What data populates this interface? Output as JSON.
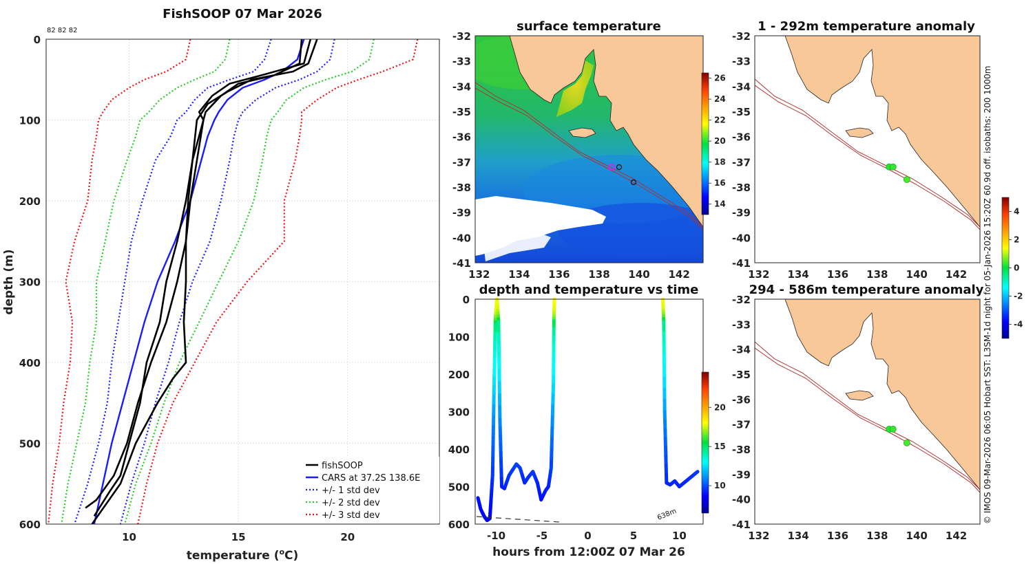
{
  "profile": {
    "title": "FishSOOP 07 Mar 2026",
    "counts_label": "82 82 82",
    "xlabel": "temperature (",
    "xlabel_unit_sup": "o",
    "xlabel_unit": "C)",
    "ylabel": "depth (m)",
    "xticks": [
      10,
      15,
      20
    ],
    "yticks": [
      0,
      100,
      200,
      300,
      400,
      500,
      600
    ],
    "xlim": [
      6.2,
      24.2
    ],
    "ylim": [
      0,
      600
    ],
    "colors": {
      "fishsoop": "#000000",
      "cars": "#1a1aff",
      "sd1": "#1a1aff",
      "sd2": "#22cc22",
      "sd3": "#ee1111"
    },
    "legend": [
      "fishSOOP",
      "CARS at 37.2S 138.6E",
      "+/- 1 std dev",
      "+/- 2 std dev",
      "+/- 3 std dev"
    ]
  },
  "chart_data": [
    {
      "type": "line",
      "title": "FishSOOP 07 Mar 2026",
      "xlabel": "temperature (oC)",
      "ylabel": "depth (m)",
      "xlim": [
        6.2,
        24.2
      ],
      "ylim": [
        600,
        0
      ],
      "depth_axis": [
        0,
        25,
        40,
        50,
        60,
        75,
        90,
        100,
        120,
        150,
        200,
        250,
        300,
        350,
        400,
        450,
        500,
        550,
        600
      ],
      "series": [
        {
          "name": "CARS at 37.2S 138.6E",
          "temperature": [
            18.0,
            17.7,
            17.0,
            16.2,
            15.2,
            14.5,
            14.1,
            13.9,
            13.6,
            13.3,
            12.8,
            12.1,
            11.3,
            10.7,
            10.2,
            9.7,
            9.2,
            8.8,
            8.4
          ]
        },
        {
          "name": "+1 std dev",
          "temperature": [
            19.4,
            19.2,
            18.6,
            17.8,
            16.7,
            15.8,
            15.2,
            15.0,
            14.8,
            14.6,
            14.2,
            13.7,
            12.9,
            12.3,
            11.8,
            11.2,
            10.7,
            10.1,
            9.6
          ]
        },
        {
          "name": "-1 std dev",
          "temperature": [
            16.5,
            16.2,
            15.7,
            14.6,
            13.6,
            13.0,
            12.6,
            12.2,
            11.9,
            11.2,
            10.6,
            10.1,
            9.8,
            9.5,
            9.2,
            9.0,
            8.6,
            8.1,
            7.5
          ]
        },
        {
          "name": "+2 std dev",
          "temperature": [
            21.2,
            21.0,
            20.2,
            19.0,
            18.0,
            17.2,
            16.8,
            16.5,
            16.3,
            16.1,
            15.7,
            15.0,
            14.1,
            13.2,
            12.3,
            11.6,
            11.0,
            10.3,
            9.8
          ]
        },
        {
          "name": "-2 std dev",
          "temperature": [
            14.6,
            14.4,
            13.9,
            13.0,
            12.2,
            11.4,
            10.9,
            10.5,
            10.3,
            9.9,
            9.3,
            8.9,
            8.5,
            8.5,
            8.2,
            8.0,
            7.6,
            7.2,
            6.9
          ]
        },
        {
          "name": "+3 std dev",
          "temperature": [
            23.2,
            23.0,
            21.6,
            20.5,
            19.5,
            18.6,
            17.9,
            17.9,
            17.8,
            17.6,
            17.1,
            17.1,
            15.4,
            14.0,
            13.0,
            12.0,
            11.3,
            10.8,
            10.4
          ]
        },
        {
          "name": "-3 std dev",
          "temperature": [
            12.8,
            12.6,
            11.7,
            10.7,
            10.0,
            9.2,
            8.8,
            8.6,
            8.5,
            8.3,
            8.1,
            7.5,
            7.1,
            7.4,
            7.3,
            7.0,
            6.8,
            6.5,
            6.3
          ]
        }
      ],
      "profiles": [
        {
          "name": "fishSOOP 1",
          "depth": [
            0,
            30,
            45,
            55,
            70,
            90,
            100,
            150,
            200,
            250,
            300,
            350,
            400,
            450,
            500,
            540,
            570,
            580
          ],
          "temperature": [
            17.9,
            17.8,
            16.6,
            15.0,
            14.2,
            13.5,
            13.4,
            13.1,
            12.8,
            12.6,
            12.2,
            11.7,
            11.0,
            10.4,
            9.9,
            9.3,
            8.5,
            8.0
          ]
        },
        {
          "name": "fishSOOP 2",
          "depth": [
            0,
            30,
            45,
            55,
            70,
            90,
            100,
            150,
            200,
            250,
            300,
            350,
            400,
            450,
            500,
            540,
            560,
            590
          ],
          "temperature": [
            18.3,
            18.0,
            16.0,
            14.6,
            13.8,
            13.2,
            13.4,
            12.9,
            12.6,
            12.2,
            11.7,
            11.4,
            10.8,
            10.5,
            10.0,
            9.6,
            9.1,
            8.4
          ]
        },
        {
          "name": "fishSOOP 3",
          "depth": [
            0,
            30,
            40,
            50,
            65,
            80,
            100,
            150,
            200,
            250,
            300,
            350,
            400,
            420,
            450,
            500,
            550,
            600
          ],
          "temperature": [
            18.6,
            18.2,
            17.5,
            15.6,
            14.5,
            13.6,
            13.1,
            12.9,
            12.7,
            12.6,
            12.6,
            12.5,
            12.6,
            12.0,
            11.3,
            10.3,
            9.6,
            8.3
          ]
        }
      ]
    },
    {
      "type": "line",
      "title": "depth and temperature vs time",
      "xlabel": "hours from 12:00Z 07 Mar 26",
      "xlim": [
        -12.3,
        12.6
      ],
      "ylim": [
        600,
        0
      ],
      "xticks": [
        -10,
        -5,
        0,
        5,
        10
      ],
      "yticks": [
        0,
        100,
        200,
        300,
        400,
        500,
        600
      ],
      "colorbar": {
        "ticks": [
          10,
          15,
          20
        ],
        "range": [
          6.5,
          24.5
        ]
      },
      "bottom_depth_label": "638m",
      "segments": [
        {
          "hours": [
            -12.0,
            -11.7,
            -11.3,
            -11.0,
            -10.7,
            -10.4,
            -10.25,
            -10.1,
            -9.95
          ],
          "depth": [
            530,
            560,
            580,
            590,
            585,
            470,
            250,
            60,
            0
          ]
        },
        {
          "hours": [
            -9.9,
            -9.75,
            -9.6,
            -9.4,
            -9.1,
            -8.6,
            -8.2,
            -7.8,
            -7.4,
            -6.9,
            -6.5,
            -6.0,
            -5.5,
            -5.1,
            -4.6,
            -4.3,
            -4.0,
            -3.75,
            -3.7,
            -3.65
          ],
          "depth": [
            0,
            60,
            320,
            500,
            505,
            470,
            455,
            440,
            450,
            490,
            475,
            460,
            490,
            535,
            510,
            500,
            450,
            220,
            50,
            0
          ]
        },
        {
          "hours": [
            8.2,
            8.3,
            8.4,
            8.6,
            9.0,
            9.5,
            10.0,
            10.5,
            11.0,
            11.5,
            12.0
          ],
          "depth": [
            0,
            60,
            300,
            490,
            495,
            485,
            500,
            490,
            480,
            470,
            460
          ]
        }
      ]
    },
    {
      "type": "heatmap",
      "title": "surface temperature",
      "xticks": [
        132,
        134,
        136,
        138,
        140,
        142
      ],
      "yticks": [
        -32,
        -33,
        -34,
        -35,
        -36,
        -37,
        -38,
        -39,
        -40,
        -41
      ],
      "colorbar": {
        "ticks": [
          14,
          16,
          18,
          20,
          22,
          24,
          26
        ],
        "range": [
          13,
          26.5
        ]
      }
    },
    {
      "type": "heatmap",
      "title": "1 - 292m temperature anomaly",
      "xticks": [
        132,
        134,
        136,
        138,
        140,
        142
      ],
      "yticks": [
        -32,
        -33,
        -34,
        -35,
        -36,
        -37,
        -38,
        -39,
        -40,
        -41
      ],
      "points": [
        {
          "lon": 138.6,
          "lat": -37.2,
          "anomaly": 0.2
        },
        {
          "lon": 138.8,
          "lat": -37.2,
          "anomaly": 0.3
        },
        {
          "lon": 139.5,
          "lat": -37.7,
          "anomaly": 0.4
        }
      ]
    },
    {
      "type": "heatmap",
      "title": "294 - 586m temperature anomaly",
      "xticks": [
        132,
        134,
        136,
        138,
        140,
        142
      ],
      "yticks": [
        -32,
        -33,
        -34,
        -35,
        -36,
        -37,
        -38,
        -39,
        -40,
        -41
      ],
      "points": [
        {
          "lon": 138.6,
          "lat": -37.2,
          "anomaly": 0.2
        },
        {
          "lon": 138.8,
          "lat": -37.2,
          "anomaly": 0.3
        },
        {
          "lon": 139.5,
          "lat": -37.75,
          "anomaly": 0.4
        }
      ]
    }
  ],
  "anomaly_colorbar": {
    "ticks": [
      -4,
      -2,
      0,
      2,
      4
    ],
    "range": [
      -5,
      5
    ]
  },
  "credit": "© IMOS 09-Mar-2026 06:05 Hobart SST: L3SM-1d night for 05-Jan-2026 15:20Z 60.9d off. isobaths: 200  1000m"
}
